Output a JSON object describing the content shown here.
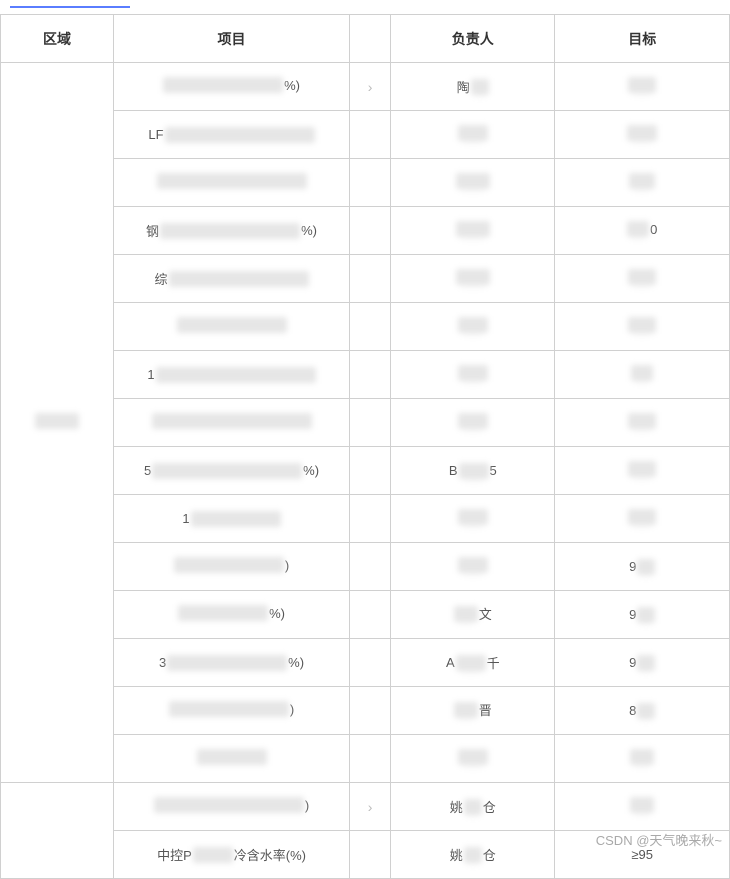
{
  "link_bar_color": "#5a7dff",
  "header": {
    "area": "区域",
    "project": "项目",
    "arrow": "",
    "owner": "负责人",
    "target": "目标"
  },
  "groups": [
    {
      "area": {
        "prefix": "",
        "blur_w": 44,
        "suffix": ""
      },
      "area_rowspan": 15,
      "rows": [
        {
          "project": {
            "prefix": "",
            "blur_w": 120,
            "suffix": "%)"
          },
          "arrow": "›",
          "owner": {
            "prefix": "陶",
            "blur_w": 18,
            "suffix": ""
          },
          "target": {
            "prefix": "",
            "blur_w": 28,
            "suffix": ""
          }
        },
        {
          "project": {
            "prefix": "LF",
            "blur_w": 150,
            "suffix": ""
          },
          "arrow": "",
          "owner": {
            "prefix": "",
            "blur_w": 30,
            "suffix": ""
          },
          "target": {
            "prefix": "",
            "blur_w": 30,
            "suffix": ""
          }
        },
        {
          "project": {
            "prefix": "",
            "blur_w": 150,
            "suffix": ""
          },
          "arrow": "",
          "owner": {
            "prefix": "",
            "blur_w": 34,
            "suffix": ""
          },
          "target": {
            "prefix": "",
            "blur_w": 26,
            "suffix": ""
          }
        },
        {
          "project": {
            "prefix": "钢",
            "blur_w": 140,
            "suffix": "%)"
          },
          "arrow": "",
          "owner": {
            "prefix": "",
            "blur_w": 34,
            "suffix": ""
          },
          "target": {
            "prefix": "",
            "blur_w": 22,
            "suffix": "0"
          }
        },
        {
          "project": {
            "prefix": "综",
            "blur_w": 140,
            "suffix": ""
          },
          "arrow": "",
          "owner": {
            "prefix": "",
            "blur_w": 34,
            "suffix": ""
          },
          "target": {
            "prefix": "",
            "blur_w": 28,
            "suffix": ""
          }
        },
        {
          "project": {
            "prefix": "",
            "blur_w": 110,
            "suffix": ""
          },
          "arrow": "",
          "owner": {
            "prefix": "",
            "blur_w": 30,
            "suffix": ""
          },
          "target": {
            "prefix": "",
            "blur_w": 28,
            "suffix": ""
          }
        },
        {
          "project": {
            "prefix": "1",
            "blur_w": 160,
            "suffix": ""
          },
          "arrow": "",
          "owner": {
            "prefix": "",
            "blur_w": 30,
            "suffix": ""
          },
          "target": {
            "prefix": "",
            "blur_w": 22,
            "suffix": ""
          }
        },
        {
          "project": {
            "prefix": "",
            "blur_w": 160,
            "suffix": ""
          },
          "arrow": "",
          "owner": {
            "prefix": "",
            "blur_w": 30,
            "suffix": ""
          },
          "target": {
            "prefix": "",
            "blur_w": 28,
            "suffix": ""
          }
        },
        {
          "project": {
            "prefix": "5",
            "blur_w": 150,
            "suffix": "%)"
          },
          "arrow": "",
          "owner": {
            "prefix": "B",
            "blur_w": 30,
            "suffix": "5"
          },
          "target": {
            "prefix": "",
            "blur_w": 28,
            "suffix": ""
          }
        },
        {
          "project": {
            "prefix": "1",
            "blur_w": 90,
            "suffix": ""
          },
          "arrow": "",
          "owner": {
            "prefix": "",
            "blur_w": 30,
            "suffix": ""
          },
          "target": {
            "prefix": "",
            "blur_w": 28,
            "suffix": ""
          }
        },
        {
          "project": {
            "prefix": "",
            "blur_w": 110,
            "suffix": ")"
          },
          "arrow": "",
          "owner": {
            "prefix": "",
            "blur_w": 30,
            "suffix": ""
          },
          "target": {
            "prefix": "9",
            "blur_w": 18,
            "suffix": ""
          }
        },
        {
          "project": {
            "prefix": "",
            "blur_w": 90,
            "suffix": "%)"
          },
          "arrow": "",
          "owner": {
            "prefix": "",
            "blur_w": 24,
            "suffix": "文"
          },
          "target": {
            "prefix": "9",
            "blur_w": 18,
            "suffix": ""
          }
        },
        {
          "project": {
            "prefix": "3",
            "blur_w": 120,
            "suffix": "%)"
          },
          "arrow": "",
          "owner": {
            "prefix": "A",
            "blur_w": 30,
            "suffix": "千"
          },
          "target": {
            "prefix": "9",
            "blur_w": 18,
            "suffix": ""
          }
        },
        {
          "project": {
            "prefix": "",
            "blur_w": 120,
            "suffix": ")"
          },
          "arrow": "",
          "owner": {
            "prefix": "",
            "blur_w": 24,
            "suffix": "晋"
          },
          "target": {
            "prefix": "8",
            "blur_w": 18,
            "suffix": ""
          }
        },
        {
          "project": {
            "prefix": "",
            "blur_w": 70,
            "suffix": ""
          },
          "arrow": "",
          "owner": {
            "prefix": "",
            "blur_w": 30,
            "suffix": ""
          },
          "target": {
            "prefix": "",
            "blur_w": 24,
            "suffix": ""
          }
        }
      ]
    },
    {
      "area": {
        "prefix": "",
        "blur_w": 0,
        "suffix": ""
      },
      "area_rowspan": 2,
      "rows": [
        {
          "project": {
            "prefix": "",
            "blur_w": 150,
            "suffix": ")"
          },
          "arrow": "›",
          "owner": {
            "prefix": "姚",
            "blur_w": 18,
            "suffix": "仓"
          },
          "target": {
            "prefix": "",
            "blur_w": 24,
            "suffix": ""
          }
        },
        {
          "project": {
            "prefix": "中控P",
            "blur_w": 40,
            "suffix": "冷含水率(%)"
          },
          "arrow": "",
          "owner": {
            "prefix": "姚",
            "blur_w": 18,
            "suffix": "仓"
          },
          "target": {
            "prefix": "≥95",
            "blur_w": 0,
            "suffix": ""
          }
        }
      ]
    }
  ],
  "watermark": "CSDN @天气晚来秋~"
}
